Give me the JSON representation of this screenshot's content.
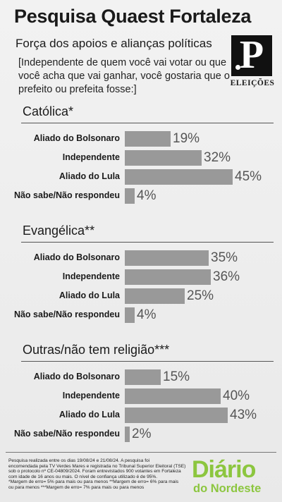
{
  "header": {
    "title": "Pesquisa Quaest Fortaleza",
    "subtitle": "Força dos apoios e alianças políticas",
    "question": "[Independente de quem você vai votar ou que você acha que vai ganhar, você gostaria que o prefeito ou prefeita fosse:]"
  },
  "logo": {
    "letter": "P",
    "label": "ELEIÇÕES"
  },
  "chart_data": {
    "type": "bar",
    "orientation": "horizontal",
    "unit": "%",
    "groups": [
      {
        "title": "Católica*",
        "items": [
          {
            "label": "Aliado do Bolsonaro",
            "value": 19,
            "value_label": "19%"
          },
          {
            "label": "Independente",
            "value": 32,
            "value_label": "32%"
          },
          {
            "label": "Aliado do Lula",
            "value": 45,
            "value_label": "45%"
          },
          {
            "label": "Não sabe/Não respondeu",
            "value": 4,
            "value_label": "4%"
          }
        ]
      },
      {
        "title": "Evangélica**",
        "items": [
          {
            "label": "Aliado do Bolsonaro",
            "value": 35,
            "value_label": "35%"
          },
          {
            "label": "Independente",
            "value": 36,
            "value_label": "36%"
          },
          {
            "label": "Aliado do Lula",
            "value": 25,
            "value_label": "25%"
          },
          {
            "label": "Não sabe/Não respondeu",
            "value": 4,
            "value_label": "4%"
          }
        ]
      },
      {
        "title": "Outras/não tem religião***",
        "items": [
          {
            "label": "Aliado do Bolsonaro",
            "value": 15,
            "value_label": "15%"
          },
          {
            "label": "Independente",
            "value": 40,
            "value_label": "40%"
          },
          {
            "label": "Aliado do Lula",
            "value": 43,
            "value_label": "43%"
          },
          {
            "label": "Não sabe/Não respondeu",
            "value": 2,
            "value_label": "2%"
          }
        ]
      }
    ],
    "bar_color": "#999999"
  },
  "footer": {
    "lines": [
      "Pesquisa realizada entre os dias 19/08/24 e 21/08/24. A pesquisa foi",
      "encomendada pela TV Verdes Mares e registrada no Tribunal Superior Eleitoral (TSE)",
      "sob o protocolo nº CE-04809/2024. Foram entrevistados 900 votantes em Fortaleza",
      "com idade de 16 anos ou mais. O nível de confiança utilizado é de 95%.",
      "*Margem de erro= 5% para mais ou para menos **Margem de erro= 6% para mais",
      "ou para menos ***Margem de erro= 7% para mais ou para menos"
    ],
    "brand_line1": "Diário",
    "brand_line2": "do Nordeste",
    "brand_color": "#8cc63f"
  }
}
